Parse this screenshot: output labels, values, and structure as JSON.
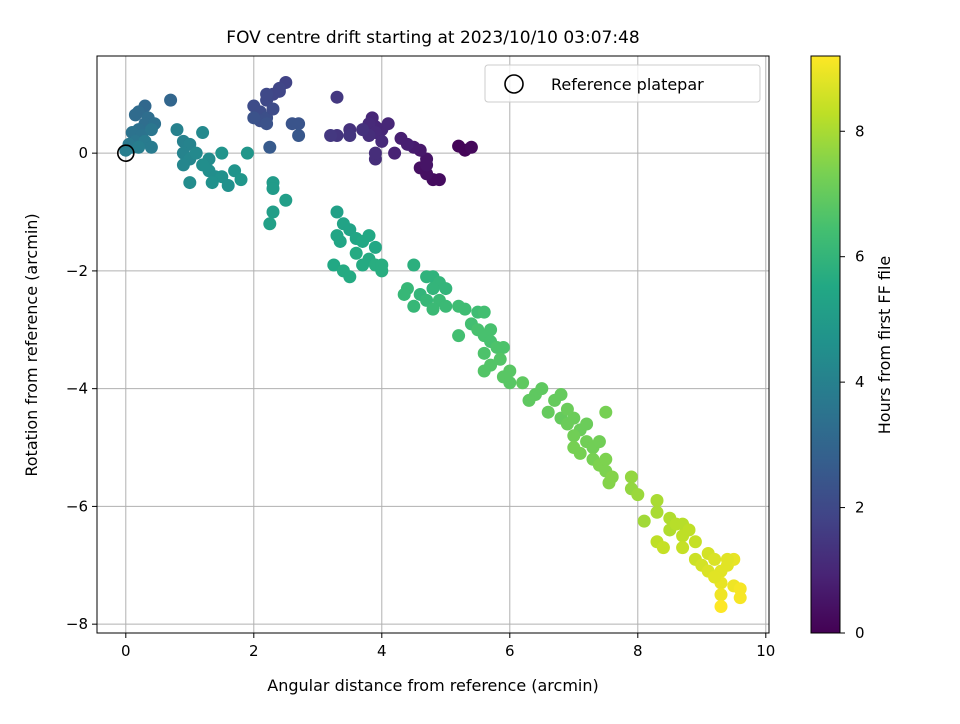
{
  "chart_data": {
    "type": "scatter",
    "title": "FOV centre drift starting at 2023/10/10 03:07:48",
    "xlabel": "Angular distance from reference (arcmin)",
    "ylabel": "Rotation from reference (arcmin)",
    "xlim": [
      -0.45,
      10.05
    ],
    "ylim": [
      -8.15,
      1.65
    ],
    "xticks": [
      0,
      2,
      4,
      6,
      8,
      10
    ],
    "xtick_labels": [
      "0",
      "2",
      "4",
      "6",
      "8",
      "10"
    ],
    "yticks": [
      0,
      -2,
      -4,
      -6,
      -8
    ],
    "ytick_labels": [
      "0",
      "−2",
      "−4",
      "−6",
      "−8"
    ],
    "grid": true,
    "legend": {
      "placement": "top-right",
      "entries": [
        "Reference platepar"
      ]
    },
    "reference_point": {
      "x": 0,
      "y": 0,
      "label": "Reference platepar"
    },
    "colorbar": {
      "label": "Hours from first FF file",
      "colormap": "viridis",
      "range": [
        0,
        9.2
      ],
      "ticks": [
        0,
        2,
        4,
        6,
        8
      ],
      "tick_labels": [
        "0",
        "2",
        "4",
        "6",
        "8"
      ]
    },
    "points": [
      {
        "x": 5.3,
        "y": 0.05,
        "t": 0.1
      },
      {
        "x": 5.2,
        "y": 0.12,
        "t": 0.1
      },
      {
        "x": 5.4,
        "y": 0.1,
        "t": 0.2
      },
      {
        "x": 4.8,
        "y": -0.45,
        "t": 0.3
      },
      {
        "x": 4.9,
        "y": -0.45,
        "t": 0.3
      },
      {
        "x": 4.7,
        "y": -0.35,
        "t": 0.4
      },
      {
        "x": 4.6,
        "y": -0.25,
        "t": 0.4
      },
      {
        "x": 4.7,
        "y": -0.1,
        "t": 0.5
      },
      {
        "x": 4.6,
        "y": 0.05,
        "t": 0.6
      },
      {
        "x": 4.5,
        "y": 0.1,
        "t": 0.7
      },
      {
        "x": 4.4,
        "y": 0.15,
        "t": 0.8
      },
      {
        "x": 4.3,
        "y": 0.25,
        "t": 0.8
      },
      {
        "x": 4.2,
        "y": 0.0,
        "t": 0.9
      },
      {
        "x": 4.0,
        "y": 0.4,
        "t": 1.0
      },
      {
        "x": 3.9,
        "y": 0.45,
        "t": 1.0
      },
      {
        "x": 3.85,
        "y": 0.6,
        "t": 1.0
      },
      {
        "x": 3.8,
        "y": 0.5,
        "t": 1.1
      },
      {
        "x": 3.9,
        "y": 0.35,
        "t": 1.1
      },
      {
        "x": 3.9,
        "y": -0.1,
        "t": 1.2
      },
      {
        "x": 3.8,
        "y": 0.3,
        "t": 1.2
      },
      {
        "x": 3.7,
        "y": 0.4,
        "t": 1.3
      },
      {
        "x": 3.5,
        "y": 0.4,
        "t": 1.3
      },
      {
        "x": 3.5,
        "y": 0.3,
        "t": 1.4
      },
      {
        "x": 3.3,
        "y": 0.3,
        "t": 1.4
      },
      {
        "x": 3.2,
        "y": 0.3,
        "t": 1.5
      },
      {
        "x": 3.3,
        "y": 0.95,
        "t": 1.5
      },
      {
        "x": 3.9,
        "y": 0.0,
        "t": 1.2
      },
      {
        "x": 4.0,
        "y": 0.2,
        "t": 1.1
      },
      {
        "x": 4.1,
        "y": 0.5,
        "t": 1.0
      },
      {
        "x": 4.7,
        "y": -0.2,
        "t": 0.5
      },
      {
        "x": 2.5,
        "y": 1.2,
        "t": 1.8
      },
      {
        "x": 2.4,
        "y": 1.05,
        "t": 1.9
      },
      {
        "x": 2.3,
        "y": 1.0,
        "t": 1.9
      },
      {
        "x": 2.2,
        "y": 0.9,
        "t": 2.0
      },
      {
        "x": 2.2,
        "y": 1.0,
        "t": 2.0
      },
      {
        "x": 2.0,
        "y": 0.8,
        "t": 2.1
      },
      {
        "x": 2.1,
        "y": 0.7,
        "t": 2.1
      },
      {
        "x": 2.2,
        "y": 0.6,
        "t": 2.2
      },
      {
        "x": 2.1,
        "y": 0.55,
        "t": 2.2
      },
      {
        "x": 2.0,
        "y": 0.6,
        "t": 2.3
      },
      {
        "x": 2.2,
        "y": 0.5,
        "t": 2.3
      },
      {
        "x": 2.6,
        "y": 0.5,
        "t": 2.4
      },
      {
        "x": 2.7,
        "y": 0.5,
        "t": 2.4
      },
      {
        "x": 2.7,
        "y": 0.3,
        "t": 2.5
      },
      {
        "x": 2.25,
        "y": 0.1,
        "t": 2.6
      },
      {
        "x": 2.4,
        "y": 1.1,
        "t": 1.9
      },
      {
        "x": 2.3,
        "y": 0.75,
        "t": 2.1
      },
      {
        "x": 0.7,
        "y": 0.9,
        "t": 3.0
      },
      {
        "x": 0.3,
        "y": 0.8,
        "t": 3.1
      },
      {
        "x": 0.2,
        "y": 0.7,
        "t": 3.2
      },
      {
        "x": 0.15,
        "y": 0.65,
        "t": 3.2
      },
      {
        "x": 0.35,
        "y": 0.6,
        "t": 3.3
      },
      {
        "x": 0.3,
        "y": 0.5,
        "t": 3.3
      },
      {
        "x": 0.45,
        "y": 0.5,
        "t": 3.4
      },
      {
        "x": 0.2,
        "y": 0.4,
        "t": 3.4
      },
      {
        "x": 0.1,
        "y": 0.35,
        "t": 3.5
      },
      {
        "x": 0.25,
        "y": 0.3,
        "t": 3.5
      },
      {
        "x": 0.4,
        "y": 0.4,
        "t": 3.6
      },
      {
        "x": 0.15,
        "y": 0.2,
        "t": 3.6
      },
      {
        "x": 0.05,
        "y": 0.15,
        "t": 3.7
      },
      {
        "x": 0.1,
        "y": 0.1,
        "t": 3.7
      },
      {
        "x": 0.3,
        "y": 0.2,
        "t": 3.8
      },
      {
        "x": 0.4,
        "y": 0.1,
        "t": 3.8
      },
      {
        "x": 0.2,
        "y": 0.1,
        "t": 3.9
      },
      {
        "x": 0.0,
        "y": 0.05,
        "t": 3.9
      },
      {
        "x": 0.8,
        "y": 0.4,
        "t": 4.0
      },
      {
        "x": 0.9,
        "y": 0.2,
        "t": 4.0
      },
      {
        "x": 1.0,
        "y": 0.15,
        "t": 4.1
      },
      {
        "x": 0.9,
        "y": 0.0,
        "t": 4.1
      },
      {
        "x": 1.0,
        "y": -0.1,
        "t": 4.2
      },
      {
        "x": 0.9,
        "y": -0.2,
        "t": 4.2
      },
      {
        "x": 1.1,
        "y": 0.0,
        "t": 4.3
      },
      {
        "x": 1.2,
        "y": 0.35,
        "t": 4.3
      },
      {
        "x": 1.0,
        "y": -0.5,
        "t": 4.4
      },
      {
        "x": 1.3,
        "y": -0.1,
        "t": 4.4
      },
      {
        "x": 1.3,
        "y": -0.3,
        "t": 4.5
      },
      {
        "x": 1.4,
        "y": -0.4,
        "t": 4.5
      },
      {
        "x": 1.5,
        "y": -0.4,
        "t": 4.6
      },
      {
        "x": 1.6,
        "y": -0.55,
        "t": 4.6
      },
      {
        "x": 1.5,
        "y": 0.0,
        "t": 4.7
      },
      {
        "x": 1.7,
        "y": -0.3,
        "t": 4.7
      },
      {
        "x": 1.8,
        "y": -0.45,
        "t": 4.8
      },
      {
        "x": 1.9,
        "y": 0.0,
        "t": 4.8
      },
      {
        "x": 1.35,
        "y": -0.5,
        "t": 4.6
      },
      {
        "x": 1.2,
        "y": -0.2,
        "t": 4.5
      },
      {
        "x": 2.3,
        "y": -0.5,
        "t": 5.0
      },
      {
        "x": 2.3,
        "y": -0.6,
        "t": 5.0
      },
      {
        "x": 2.5,
        "y": -0.8,
        "t": 5.1
      },
      {
        "x": 2.3,
        "y": -1.0,
        "t": 5.1
      },
      {
        "x": 2.25,
        "y": -1.2,
        "t": 5.2
      },
      {
        "x": 3.3,
        "y": -1.0,
        "t": 5.2
      },
      {
        "x": 3.4,
        "y": -1.2,
        "t": 5.3
      },
      {
        "x": 3.5,
        "y": -1.3,
        "t": 5.3
      },
      {
        "x": 3.3,
        "y": -1.4,
        "t": 5.4
      },
      {
        "x": 3.35,
        "y": -1.5,
        "t": 5.4
      },
      {
        "x": 3.6,
        "y": -1.45,
        "t": 5.4
      },
      {
        "x": 3.7,
        "y": -1.5,
        "t": 5.5
      },
      {
        "x": 3.8,
        "y": -1.4,
        "t": 5.5
      },
      {
        "x": 3.9,
        "y": -1.6,
        "t": 5.5
      },
      {
        "x": 3.6,
        "y": -1.7,
        "t": 5.6
      },
      {
        "x": 3.8,
        "y": -1.8,
        "t": 5.6
      },
      {
        "x": 3.7,
        "y": -1.9,
        "t": 5.6
      },
      {
        "x": 3.9,
        "y": -1.9,
        "t": 5.7
      },
      {
        "x": 4.0,
        "y": -1.9,
        "t": 5.7
      },
      {
        "x": 4.0,
        "y": -2.0,
        "t": 5.7
      },
      {
        "x": 3.25,
        "y": -1.9,
        "t": 5.5
      },
      {
        "x": 3.4,
        "y": -2.0,
        "t": 5.6
      },
      {
        "x": 3.5,
        "y": -2.1,
        "t": 5.6
      },
      {
        "x": 4.5,
        "y": -1.9,
        "t": 5.8
      },
      {
        "x": 4.7,
        "y": -2.1,
        "t": 5.9
      },
      {
        "x": 4.8,
        "y": -2.1,
        "t": 5.9
      },
      {
        "x": 4.9,
        "y": -2.2,
        "t": 6.0
      },
      {
        "x": 5.0,
        "y": -2.3,
        "t": 6.0
      },
      {
        "x": 4.8,
        "y": -2.3,
        "t": 6.0
      },
      {
        "x": 4.6,
        "y": -2.4,
        "t": 6.0
      },
      {
        "x": 4.4,
        "y": -2.3,
        "t": 6.1
      },
      {
        "x": 4.35,
        "y": -2.4,
        "t": 6.1
      },
      {
        "x": 4.5,
        "y": -2.6,
        "t": 6.1
      },
      {
        "x": 4.7,
        "y": -2.5,
        "t": 6.1
      },
      {
        "x": 4.9,
        "y": -2.5,
        "t": 6.2
      },
      {
        "x": 4.8,
        "y": -2.65,
        "t": 6.2
      },
      {
        "x": 5.0,
        "y": -2.6,
        "t": 6.2
      },
      {
        "x": 5.2,
        "y": -2.6,
        "t": 6.3
      },
      {
        "x": 5.3,
        "y": -2.65,
        "t": 6.3
      },
      {
        "x": 5.5,
        "y": -2.7,
        "t": 6.3
      },
      {
        "x": 5.6,
        "y": -2.7,
        "t": 6.4
      },
      {
        "x": 5.4,
        "y": -2.9,
        "t": 6.4
      },
      {
        "x": 5.2,
        "y": -3.1,
        "t": 6.4
      },
      {
        "x": 5.5,
        "y": -3.0,
        "t": 6.5
      },
      {
        "x": 5.6,
        "y": -3.1,
        "t": 6.5
      },
      {
        "x": 5.7,
        "y": -3.0,
        "t": 6.5
      },
      {
        "x": 5.7,
        "y": -3.2,
        "t": 6.5
      },
      {
        "x": 5.8,
        "y": -3.3,
        "t": 6.6
      },
      {
        "x": 5.6,
        "y": -3.4,
        "t": 6.6
      },
      {
        "x": 5.9,
        "y": -3.3,
        "t": 6.6
      },
      {
        "x": 5.7,
        "y": -3.6,
        "t": 6.7
      },
      {
        "x": 5.6,
        "y": -3.7,
        "t": 6.7
      },
      {
        "x": 5.85,
        "y": -3.5,
        "t": 6.7
      },
      {
        "x": 6.0,
        "y": -3.7,
        "t": 6.8
      },
      {
        "x": 5.9,
        "y": -3.8,
        "t": 6.8
      },
      {
        "x": 6.0,
        "y": -3.9,
        "t": 6.8
      },
      {
        "x": 6.2,
        "y": -3.9,
        "t": 6.9
      },
      {
        "x": 6.4,
        "y": -4.1,
        "t": 6.9
      },
      {
        "x": 6.5,
        "y": -4.0,
        "t": 6.9
      },
      {
        "x": 6.7,
        "y": -4.2,
        "t": 7.0
      },
      {
        "x": 6.8,
        "y": -4.1,
        "t": 7.0
      },
      {
        "x": 6.6,
        "y": -4.4,
        "t": 7.0
      },
      {
        "x": 6.8,
        "y": -4.5,
        "t": 7.0
      },
      {
        "x": 6.9,
        "y": -4.6,
        "t": 7.1
      },
      {
        "x": 7.0,
        "y": -4.5,
        "t": 7.1
      },
      {
        "x": 7.1,
        "y": -4.7,
        "t": 7.1
      },
      {
        "x": 7.2,
        "y": -4.6,
        "t": 7.1
      },
      {
        "x": 7.0,
        "y": -4.8,
        "t": 7.2
      },
      {
        "x": 7.2,
        "y": -4.9,
        "t": 7.2
      },
      {
        "x": 7.3,
        "y": -5.0,
        "t": 7.2
      },
      {
        "x": 7.4,
        "y": -4.9,
        "t": 7.2
      },
      {
        "x": 7.5,
        "y": -4.4,
        "t": 7.3
      },
      {
        "x": 7.1,
        "y": -5.1,
        "t": 7.3
      },
      {
        "x": 7.3,
        "y": -5.2,
        "t": 7.3
      },
      {
        "x": 7.4,
        "y": -5.3,
        "t": 7.4
      },
      {
        "x": 7.5,
        "y": -5.2,
        "t": 7.4
      },
      {
        "x": 7.5,
        "y": -5.4,
        "t": 7.4
      },
      {
        "x": 7.6,
        "y": -5.5,
        "t": 7.5
      },
      {
        "x": 7.55,
        "y": -5.6,
        "t": 7.5
      },
      {
        "x": 6.3,
        "y": -4.2,
        "t": 6.9
      },
      {
        "x": 6.9,
        "y": -4.35,
        "t": 7.1
      },
      {
        "x": 7.0,
        "y": -5.0,
        "t": 7.3
      },
      {
        "x": 7.9,
        "y": -5.5,
        "t": 7.7
      },
      {
        "x": 7.9,
        "y": -5.7,
        "t": 7.7
      },
      {
        "x": 8.0,
        "y": -5.8,
        "t": 7.8
      },
      {
        "x": 8.1,
        "y": -6.25,
        "t": 7.9
      },
      {
        "x": 8.3,
        "y": -5.9,
        "t": 8.0
      },
      {
        "x": 8.3,
        "y": -6.1,
        "t": 8.0
      },
      {
        "x": 8.5,
        "y": -6.2,
        "t": 8.1
      },
      {
        "x": 8.5,
        "y": -6.4,
        "t": 8.1
      },
      {
        "x": 8.6,
        "y": -6.3,
        "t": 8.2
      },
      {
        "x": 8.7,
        "y": -6.3,
        "t": 8.2
      },
      {
        "x": 8.7,
        "y": -6.5,
        "t": 8.3
      },
      {
        "x": 8.8,
        "y": -6.4,
        "t": 8.3
      },
      {
        "x": 8.7,
        "y": -6.7,
        "t": 8.4
      },
      {
        "x": 8.9,
        "y": -6.6,
        "t": 8.4
      },
      {
        "x": 8.3,
        "y": -6.6,
        "t": 8.3
      },
      {
        "x": 8.4,
        "y": -6.7,
        "t": 8.4
      },
      {
        "x": 8.9,
        "y": -6.9,
        "t": 8.5
      },
      {
        "x": 9.0,
        "y": -7.0,
        "t": 8.6
      },
      {
        "x": 9.1,
        "y": -6.8,
        "t": 8.6
      },
      {
        "x": 9.2,
        "y": -6.9,
        "t": 8.7
      },
      {
        "x": 9.3,
        "y": -7.1,
        "t": 8.8
      },
      {
        "x": 9.4,
        "y": -7.0,
        "t": 8.8
      },
      {
        "x": 9.5,
        "y": -6.9,
        "t": 8.9
      },
      {
        "x": 9.3,
        "y": -7.3,
        "t": 8.9
      },
      {
        "x": 9.5,
        "y": -7.35,
        "t": 9.0
      },
      {
        "x": 9.3,
        "y": -7.5,
        "t": 9.0
      },
      {
        "x": 9.6,
        "y": -7.4,
        "t": 9.1
      },
      {
        "x": 9.6,
        "y": -7.55,
        "t": 9.1
      },
      {
        "x": 9.3,
        "y": -7.7,
        "t": 9.2
      },
      {
        "x": 9.4,
        "y": -6.9,
        "t": 8.8
      },
      {
        "x": 9.1,
        "y": -7.1,
        "t": 8.7
      },
      {
        "x": 9.2,
        "y": -7.2,
        "t": 8.8
      }
    ]
  }
}
